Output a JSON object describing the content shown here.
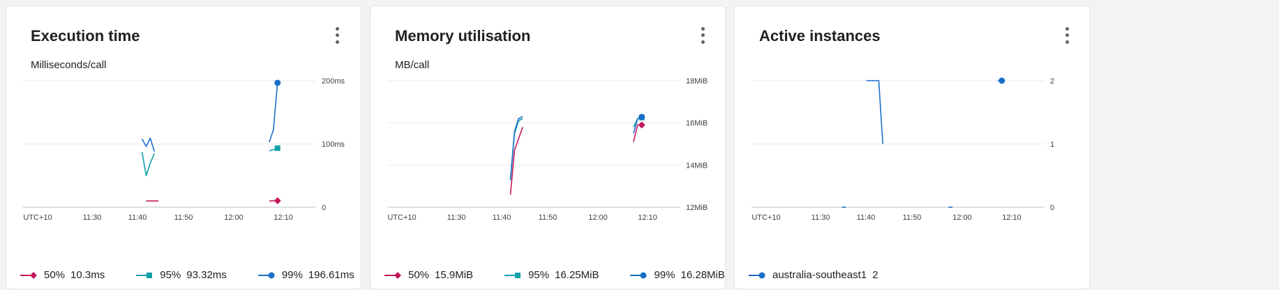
{
  "cards": [
    {
      "title": "Execution time",
      "subtitle": "Milliseconds/call",
      "menu_icon": "more-vert-icon",
      "legend": [
        {
          "label": "50%",
          "value": "10.3ms",
          "color": "#c2185b",
          "marker": "diamond"
        },
        {
          "label": "95%",
          "value": "93.32ms",
          "color": "#12a0a8",
          "marker": "square"
        },
        {
          "label": "99%",
          "value": "196.61ms",
          "color": "#1a6fc9",
          "marker": "circle"
        }
      ]
    },
    {
      "title": "Memory utilisation",
      "subtitle": "MB/call",
      "menu_icon": "more-vert-icon",
      "legend": [
        {
          "label": "50%",
          "value": "15.9MiB",
          "color": "#c2185b",
          "marker": "diamond"
        },
        {
          "label": "95%",
          "value": "16.25MiB",
          "color": "#12a0a8",
          "marker": "square"
        },
        {
          "label": "99%",
          "value": "16.28MiB",
          "color": "#1a6fc9",
          "marker": "circle"
        }
      ]
    },
    {
      "title": "Active instances",
      "subtitle": "",
      "menu_icon": "more-vert-icon",
      "legend": [
        {
          "label": "australia-southeast1",
          "value": "2",
          "color": "#1a6fc9",
          "marker": "circle"
        }
      ]
    }
  ],
  "chart_data": [
    {
      "type": "line",
      "title": "Execution time",
      "ylabel": "Milliseconds/call",
      "xlabel": "",
      "x_ticks": [
        "UTC+10",
        "11:30",
        "11:40",
        "11:50",
        "12:00",
        "12:10"
      ],
      "y_ticks": [
        {
          "v": 0,
          "label": "0"
        },
        {
          "v": 100,
          "label": "100ms"
        },
        {
          "v": 200,
          "label": "200ms"
        }
      ],
      "ylim": [
        0,
        200
      ],
      "series": [
        {
          "name": "50%",
          "color": "#c2185b",
          "marker": "diamond",
          "segments": [
            [
              [
                "11:42",
                10
              ],
              [
                "11:45",
                10
              ]
            ],
            [
              [
                "12:12",
                10
              ],
              [
                "12:14",
                10.3
              ]
            ]
          ]
        },
        {
          "name": "95%",
          "color": "#12a0a8",
          "marker": "square",
          "segments": [
            [
              [
                "11:41",
                87
              ],
              [
                "11:42",
                50
              ],
              [
                "11:43",
                70
              ],
              [
                "11:44",
                85
              ]
            ],
            [
              [
                "12:12",
                89
              ],
              [
                "12:13",
                91
              ],
              [
                "12:14",
                93.32
              ]
            ]
          ]
        },
        {
          "name": "99%",
          "color": "#1a6fc9",
          "marker": "circle",
          "segments": [
            [
              [
                "11:41",
                108
              ],
              [
                "11:42",
                96
              ],
              [
                "11:43",
                109
              ],
              [
                "11:44",
                88
              ]
            ],
            [
              [
                "12:12",
                103
              ],
              [
                "12:13",
                122
              ],
              [
                "12:14",
                196.61
              ]
            ]
          ]
        }
      ]
    },
    {
      "type": "line",
      "title": "Memory utilisation",
      "ylabel": "MB/call",
      "xlabel": "",
      "x_ticks": [
        "UTC+10",
        "11:30",
        "11:40",
        "11:50",
        "12:00",
        "12:10"
      ],
      "y_ticks": [
        {
          "v": 12,
          "label": "12MiB"
        },
        {
          "v": 14,
          "label": "14MiB"
        },
        {
          "v": 16,
          "label": "16MiB"
        },
        {
          "v": 18,
          "label": "18MiB"
        }
      ],
      "ylim": [
        12,
        18
      ],
      "series": [
        {
          "name": "50%",
          "color": "#c2185b",
          "marker": "diamond",
          "segments": [
            [
              [
                "11:42",
                12.6
              ],
              [
                "11:43",
                14.7
              ],
              [
                "11:45",
                15.8
              ]
            ],
            [
              [
                "12:12",
                15.1
              ],
              [
                "12:13",
                15.9
              ],
              [
                "12:14",
                15.9
              ]
            ]
          ]
        },
        {
          "name": "95%",
          "color": "#12a0a8",
          "marker": "square",
          "segments": [
            [
              [
                "11:42",
                13.3
              ],
              [
                "11:43",
                15.5
              ],
              [
                "11:44",
                16.1
              ],
              [
                "11:45",
                16.2
              ]
            ],
            [
              [
                "12:12",
                15.8
              ],
              [
                "12:13",
                16.2
              ],
              [
                "12:14",
                16.25
              ]
            ]
          ]
        },
        {
          "name": "99%",
          "color": "#1a6fc9",
          "marker": "circle",
          "segments": [
            [
              [
                "11:42",
                13.3
              ],
              [
                "11:43",
                15.6
              ],
              [
                "11:44",
                16.2
              ],
              [
                "11:45",
                16.3
              ]
            ],
            [
              [
                "12:12",
                15.5
              ],
              [
                "12:13",
                16.2
              ],
              [
                "12:14",
                16.28
              ]
            ]
          ]
        }
      ]
    },
    {
      "type": "line",
      "title": "Active instances",
      "ylabel": "",
      "xlabel": "",
      "x_ticks": [
        "UTC+10",
        "11:30",
        "11:40",
        "11:50",
        "12:00",
        "12:10"
      ],
      "y_ticks": [
        {
          "v": 0,
          "label": "0"
        },
        {
          "v": 1,
          "label": "1"
        },
        {
          "v": 2,
          "label": "2"
        }
      ],
      "ylim": [
        0,
        2
      ],
      "series": [
        {
          "name": "australia-southeast1",
          "color": "#1a6fc9",
          "marker": "circle",
          "segments": [
            [
              [
                "11:34",
                0
              ],
              [
                "11:35",
                0
              ]
            ],
            [
              [
                "11:40",
                2
              ],
              [
                "11:43",
                2
              ],
              [
                "11:44",
                1
              ]
            ],
            [
              [
                "12:00",
                0
              ],
              [
                "12:01",
                0
              ]
            ],
            [
              [
                "12:12",
                2
              ],
              [
                "12:13",
                2
              ]
            ]
          ]
        }
      ]
    }
  ]
}
